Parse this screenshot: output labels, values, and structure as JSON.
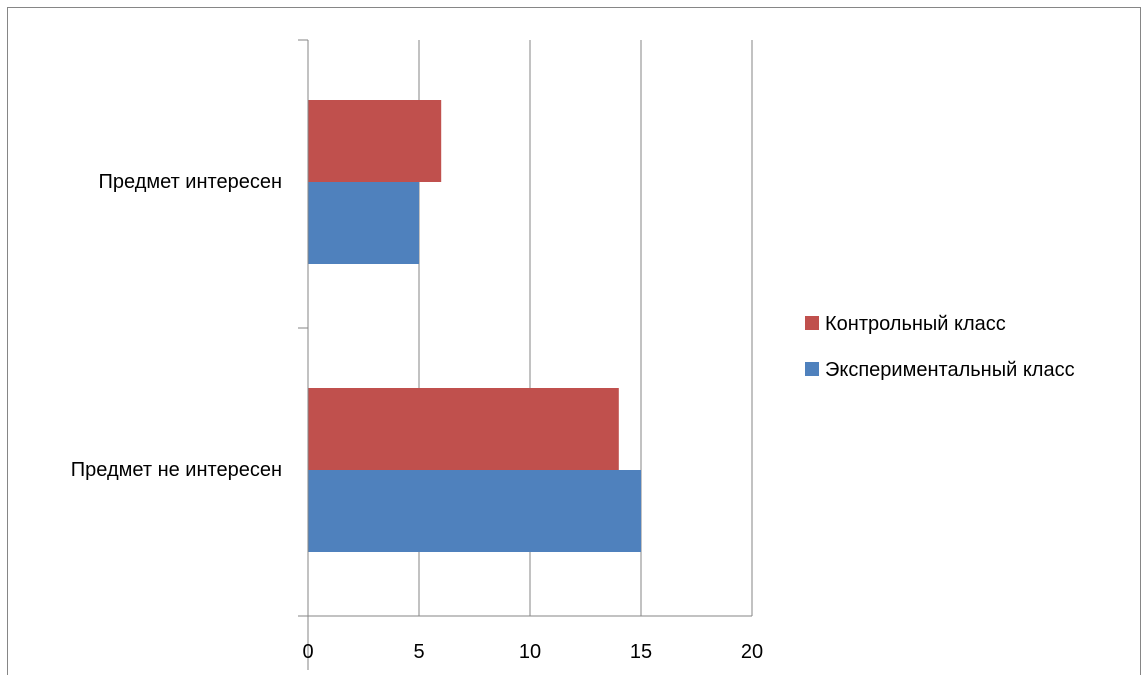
{
  "chart_data": {
    "type": "bar",
    "orientation": "horizontal",
    "title": "",
    "xlabel": "",
    "ylabel": "",
    "categories": [
      "Предмет не интересен",
      "Предмет интересен"
    ],
    "series": [
      {
        "name": "Экспериментальный класс",
        "values": [
          15,
          5
        ],
        "color": "#4F81BD"
      },
      {
        "name": "Контрольный класс",
        "values": [
          14,
          6
        ],
        "color": "#C0504D"
      }
    ],
    "xlim": [
      0,
      20
    ],
    "x_ticks": [
      "0",
      "5",
      "10",
      "15",
      "20"
    ],
    "grid": "vertical",
    "legend_position": "right",
    "legend_order": [
      "Контрольный класс",
      "Экспериментальный класс"
    ]
  }
}
